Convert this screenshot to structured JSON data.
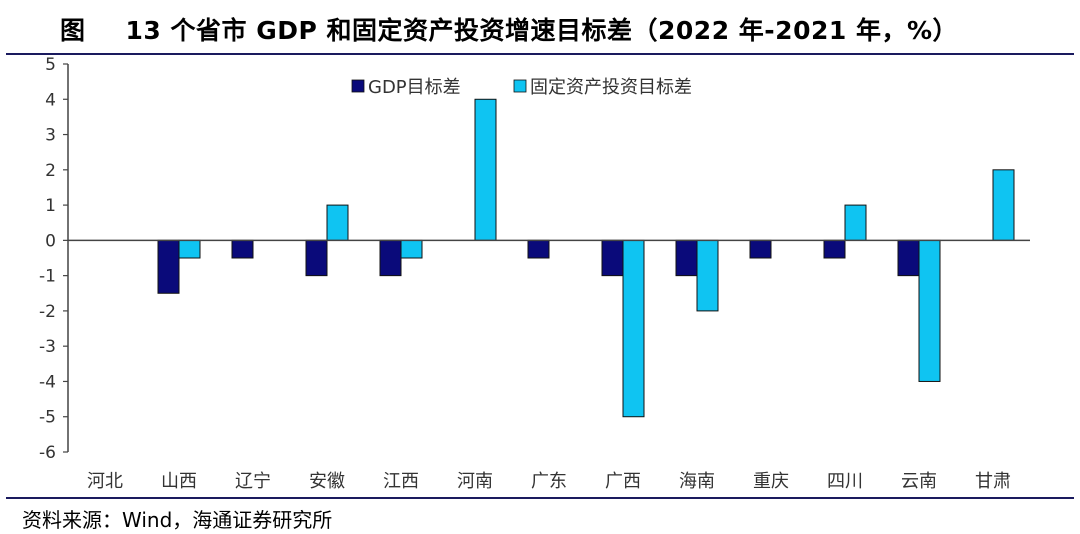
{
  "header": {
    "prefix": "图",
    "title": "13 个省市 GDP 和固定资产投资增速目标差（2022 年-2021 年，%）"
  },
  "source": "资料来源：Wind，海通证券研究所",
  "chart_data": {
    "type": "bar",
    "categories": [
      "河北",
      "山西",
      "辽宁",
      "安徽",
      "江西",
      "河南",
      "广东",
      "广西",
      "海南",
      "重庆",
      "四川",
      "云南",
      "甘肃"
    ],
    "series": [
      {
        "name": "GDP目标差",
        "color": "#0a0a7a",
        "values": [
          0,
          -1.5,
          -0.5,
          -1,
          -1,
          0,
          -0.5,
          -1,
          -1,
          -0.5,
          -0.5,
          -1,
          0
        ]
      },
      {
        "name": "固定资产投资目标差",
        "color": "#0fc4f2",
        "values": [
          0,
          -0.5,
          0,
          1,
          -0.5,
          4,
          0,
          -5,
          -2,
          0,
          1,
          -4,
          2
        ]
      }
    ],
    "ylim": [
      -6,
      5
    ],
    "yticks": [
      "5",
      "4",
      "3",
      "2",
      "1",
      "0",
      "-1",
      "-2",
      "-3",
      "-4",
      "-5",
      "-6"
    ],
    "legend_position": "top-center"
  }
}
